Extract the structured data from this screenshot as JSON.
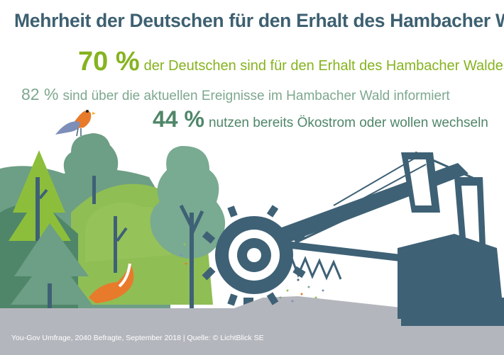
{
  "title": "Mehrheit der Deutschen für den Erhalt des Hambacher Waldes",
  "stats": [
    {
      "value": "70 %",
      "text": "der Deutschen sind für den Erhalt des Hambacher Waldes"
    },
    {
      "value": "82 %",
      "text": "sind über die aktuellen Ereignisse im Hambacher Wald informiert"
    },
    {
      "value": "44 %",
      "text": "nutzen bereits Ökostrom oder wollen wechseln"
    }
  ],
  "footer": "You-Gov Umfrage, 2040 Befragte, September 2018 | Quelle: © LichtBlick SE",
  "colors": {
    "title": "#3d6071",
    "stat_1": "#86b31f",
    "stat_2": "#7ea88f",
    "stat_3": "#4f8669",
    "excavator": "#3e6175",
    "ground": "#b4b6bd",
    "forest_dark": "#4f8669",
    "forest_light": "#96c25a",
    "fox": "#e87a2b"
  },
  "icons": [
    "bird-icon",
    "fox-icon",
    "bucket-wheel-excavator-icon"
  ]
}
